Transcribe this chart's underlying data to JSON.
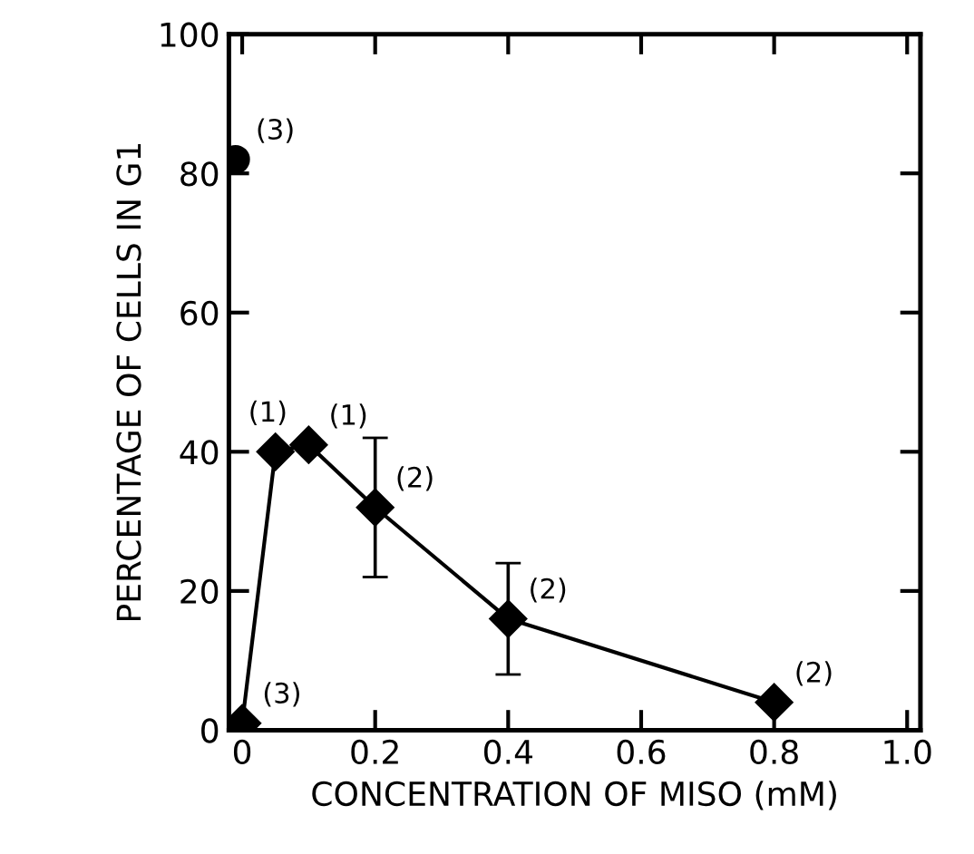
{
  "chart_data": {
    "type": "line",
    "xlabel": "CONCENTRATION OF MISO (mM)",
    "ylabel": "PERCENTAGE OF CELLS IN G1",
    "xlim": [
      -0.02,
      1.02
    ],
    "xticks": [
      0,
      0.2,
      0.4,
      0.6,
      0.8,
      {
        "value": 1.0,
        "label": "1.0"
      }
    ],
    "ylim": [
      0,
      100
    ],
    "yticks": [
      0,
      20,
      40,
      60,
      80,
      100
    ],
    "grid": false,
    "legend": false,
    "series": [
      {
        "type": "scatter",
        "marker": "circle",
        "color": "#000000",
        "x": [
          -0.01
        ],
        "values": [
          82
        ]
      },
      {
        "marker": "diamond",
        "line_style": "solid",
        "color": "#000000",
        "x": [
          0,
          0.05,
          0.1,
          0.2,
          0.4,
          0.8
        ],
        "values": [
          1,
          40,
          41,
          32,
          16,
          4
        ],
        "errors": [
          null,
          null,
          null,
          10,
          8,
          null
        ]
      }
    ],
    "annotations": [
      {
        "text": "(3)",
        "x": -0.01,
        "y": 82
      },
      {
        "text": "(3)",
        "x": 0,
        "y": 1
      },
      {
        "text": "(1)",
        "x": 0.05,
        "y": 40
      },
      {
        "text": "(1)",
        "x": 0.1,
        "y": 41
      },
      {
        "text": "(2)",
        "x": 0.2,
        "y": 32
      },
      {
        "text": "(2)",
        "x": 0.4,
        "y": 16
      },
      {
        "text": "(2)",
        "x": 0.8,
        "y": 4
      }
    ]
  }
}
